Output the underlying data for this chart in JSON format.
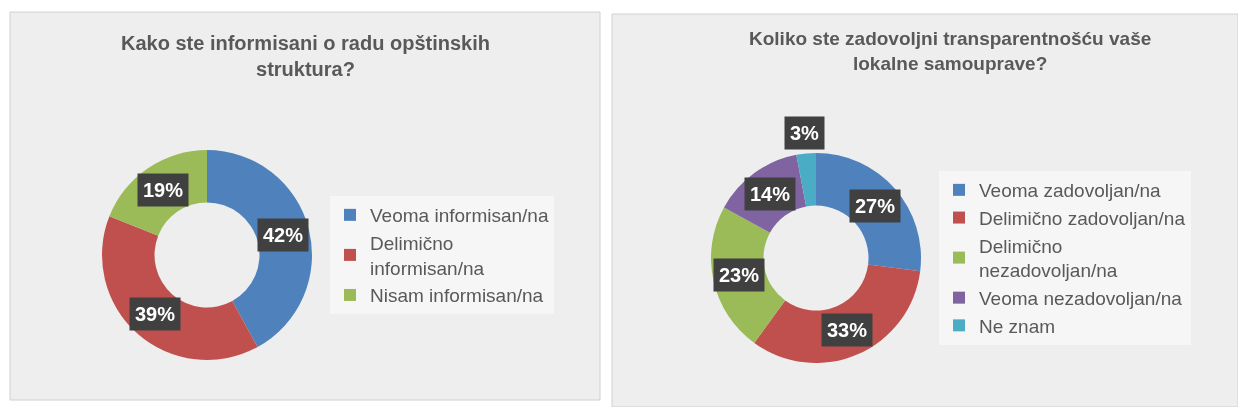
{
  "chart_data": [
    {
      "type": "donut",
      "title": "Kako ste informisani o radu opštinskih struktura?",
      "categories": [
        "Veoma informisan/na",
        "Delimično informisan/na",
        "Nisam informisan/na"
      ],
      "values": [
        42,
        39,
        19
      ],
      "colors": [
        "#4f81bd",
        "#c0504d",
        "#9bbb59"
      ],
      "value_labels": [
        "42%",
        "39%",
        "19%"
      ],
      "legend": "right"
    },
    {
      "type": "donut",
      "title": "Koliko ste zadovoljni transparentnošću vaše lokalne samouprave?",
      "categories": [
        "Veoma zadovoljan/na",
        "Delimično zadovoljan/na",
        "Delimično nezadovoljan/na",
        "Veoma nezadovoljan/na",
        "Ne znam"
      ],
      "values": [
        27,
        33,
        23,
        14,
        3
      ],
      "colors": [
        "#4f81bd",
        "#c0504d",
        "#9bbb59",
        "#8064a2",
        "#4bacc6"
      ],
      "value_labels": [
        "27%",
        "33%",
        "23%",
        "14%",
        "3%"
      ],
      "legend": "right"
    }
  ]
}
